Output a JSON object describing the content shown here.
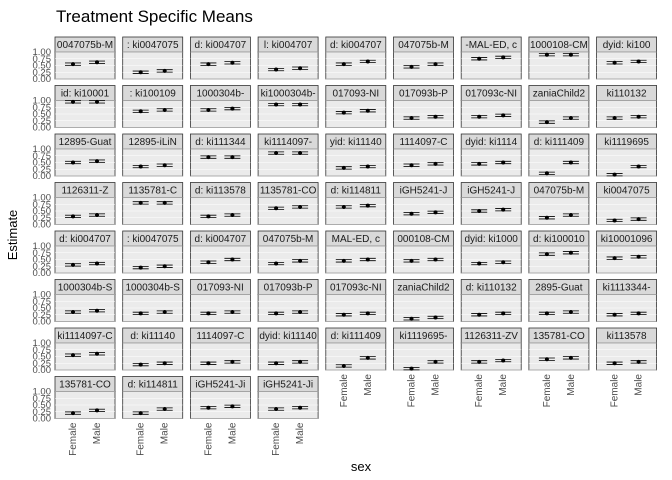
{
  "chart_data": {
    "type": "scatter",
    "title": "Treatment Specific Means",
    "xlabel": "sex",
    "ylabel": "Estimate",
    "categories": [
      "Female",
      "Male"
    ],
    "ylim": [
      0,
      1
    ],
    "yticks": [
      "0.00",
      "0.25",
      "0.50",
      "0.75",
      "1.00"
    ],
    "grid": true,
    "colors": {
      "panel_bg": "#ebebeb",
      "strip_bg": "#d9d9d9",
      "grid": "#ffffff",
      "points": "#000000"
    },
    "panels": [
      {
        "label": "0047075b-M",
        "values": [
          0.55,
          0.62
        ]
      },
      {
        "label": ": ki0047075",
        "values": [
          0.25,
          0.3
        ]
      },
      {
        "label": "d: ki004707",
        "values": [
          0.55,
          0.6
        ]
      },
      {
        "label": "l: ki004707",
        "values": [
          0.35,
          0.4
        ]
      },
      {
        "label": "d: ki004707",
        "values": [
          0.55,
          0.65
        ]
      },
      {
        "label": "047075b-M",
        "values": [
          0.45,
          0.55
        ]
      },
      {
        "label": "-MAL-ED, c",
        "values": [
          0.75,
          0.8
        ]
      },
      {
        "label": "1000108-CM",
        "values": [
          0.9,
          0.9
        ]
      },
      {
        "label": "dyid: ki100",
        "values": [
          0.6,
          0.65
        ]
      },
      {
        "label": "id: ki10001",
        "values": [
          0.95,
          0.95
        ]
      },
      {
        "label": ": ki100109",
        "values": [
          0.6,
          0.65
        ]
      },
      {
        "label": "1000304b-",
        "values": [
          0.65,
          0.7
        ]
      },
      {
        "label": "ki1000304b-",
        "values": [
          0.85,
          0.85
        ]
      },
      {
        "label": "017093-NI",
        "values": [
          0.55,
          0.62
        ]
      },
      {
        "label": "017093b-P",
        "values": [
          0.35,
          0.4
        ]
      },
      {
        "label": "017093c-NI",
        "values": [
          0.4,
          0.45
        ]
      },
      {
        "label": "zaniaChild2",
        "values": [
          0.2,
          0.35
        ]
      },
      {
        "label": "ki110132",
        "values": [
          0.35,
          0.4
        ]
      },
      {
        "label": "12895-Guat",
        "values": [
          0.5,
          0.55
        ]
      },
      {
        "label": "12895-iLiN",
        "values": [
          0.35,
          0.4
        ]
      },
      {
        "label": "d: ki111344",
        "values": [
          0.7,
          0.7
        ]
      },
      {
        "label": "ki1114097-",
        "values": [
          0.85,
          0.85
        ]
      },
      {
        "label": "yid: ki11140",
        "values": [
          0.3,
          0.35
        ]
      },
      {
        "label": "1114097-C",
        "values": [
          0.4,
          0.45
        ]
      },
      {
        "label": "dyid: ki1114",
        "values": [
          0.45,
          0.5
        ]
      },
      {
        "label": "d: ki111409",
        "values": [
          0.1,
          0.5
        ]
      },
      {
        "label": "ki1119695",
        "values": [
          0.05,
          0.35
        ]
      },
      {
        "label": "1126311-Z",
        "values": [
          0.3,
          0.35
        ]
      },
      {
        "label": "1135781-C",
        "values": [
          0.8,
          0.8
        ]
      },
      {
        "label": "d: ki113578",
        "values": [
          0.3,
          0.35
        ]
      },
      {
        "label": "1135781-CO",
        "values": [
          0.6,
          0.65
        ]
      },
      {
        "label": "d: ki114811",
        "values": [
          0.65,
          0.7
        ]
      },
      {
        "label": "iGH5241-J",
        "values": [
          0.4,
          0.45
        ]
      },
      {
        "label": "iGH5241-J",
        "values": [
          0.5,
          0.55
        ]
      },
      {
        "label": "047075b-M",
        "values": [
          0.25,
          0.35
        ]
      },
      {
        "label": "ki0047075",
        "values": [
          0.15,
          0.2
        ]
      },
      {
        "label": "d: ki004707",
        "values": [
          0.3,
          0.35
        ]
      },
      {
        "label": ": ki0047075",
        "values": [
          0.2,
          0.25
        ]
      },
      {
        "label": "d: ki004707",
        "values": [
          0.4,
          0.5
        ]
      },
      {
        "label": "047075b-M",
        "values": [
          0.35,
          0.45
        ]
      },
      {
        "label": "MAL-ED, c",
        "values": [
          0.45,
          0.5
        ]
      },
      {
        "label": "000108-CM",
        "values": [
          0.45,
          0.5
        ]
      },
      {
        "label": "dyid: ki1000",
        "values": [
          0.35,
          0.4
        ]
      },
      {
        "label": "d: ki100010",
        "values": [
          0.7,
          0.75
        ]
      },
      {
        "label": "ki10001096",
        "values": [
          0.55,
          0.6
        ]
      },
      {
        "label": "1000304b-S",
        "values": [
          0.35,
          0.4
        ]
      },
      {
        "label": "1000304b-S",
        "values": [
          0.3,
          0.35
        ]
      },
      {
        "label": "017093-NI",
        "values": [
          0.3,
          0.35
        ]
      },
      {
        "label": "017093b-P",
        "values": [
          0.3,
          0.35
        ]
      },
      {
        "label": "017093c-NI",
        "values": [
          0.25,
          0.3
        ]
      },
      {
        "label": "zaniaChild2",
        "values": [
          0.1,
          0.15
        ]
      },
      {
        "label": "d: ki110132",
        "values": [
          0.25,
          0.3
        ]
      },
      {
        "label": "2895-Guat",
        "values": [
          0.3,
          0.35
        ]
      },
      {
        "label": "ki1113344-",
        "values": [
          0.25,
          0.3
        ]
      },
      {
        "label": "ki1114097-C",
        "values": [
          0.55,
          0.6
        ]
      },
      {
        "label": "d: ki11140",
        "values": [
          0.2,
          0.25
        ]
      },
      {
        "label": "1114097-C",
        "values": [
          0.25,
          0.3
        ]
      },
      {
        "label": "dyid: ki11140",
        "values": [
          0.25,
          0.3
        ]
      },
      {
        "label": "d: ki111409",
        "values": [
          0.15,
          0.45
        ]
      },
      {
        "label": "ki1119695-",
        "values": [
          0.05,
          0.3
        ]
      },
      {
        "label": "1126311-ZV",
        "values": [
          0.3,
          0.35
        ]
      },
      {
        "label": "135781-CO",
        "values": [
          0.4,
          0.45
        ]
      },
      {
        "label": "ki113578",
        "values": [
          0.25,
          0.3
        ]
      },
      {
        "label": "135781-CO",
        "values": [
          0.2,
          0.3
        ]
      },
      {
        "label": "d: ki114811",
        "values": [
          0.2,
          0.35
        ]
      },
      {
        "label": "iGH5241-Ji",
        "values": [
          0.4,
          0.45
        ]
      },
      {
        "label": "iGH5241-Ji",
        "values": [
          0.35,
          0.4
        ]
      }
    ]
  }
}
